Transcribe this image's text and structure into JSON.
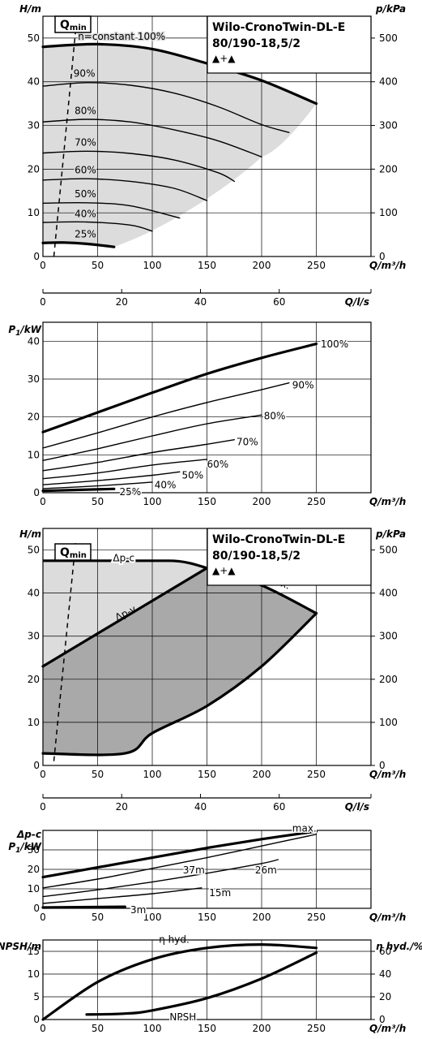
{
  "chart_data": [
    {
      "id": "c1",
      "type": "line",
      "title": "Wilo-CronoTwin-DL-E",
      "subtitle": "80/190-18,5/2",
      "title_symbols": "▲+▲",
      "qmin_label": "Qmin",
      "ylabel_left": "H/m",
      "ylabel_right": "p/kPa",
      "xlabel": "Q/m³/h",
      "xlim": [
        0,
        300
      ],
      "ylim": [
        0,
        55
      ],
      "x_ticks": [
        "0",
        "50",
        "100",
        "150",
        "200",
        "250"
      ],
      "y_ticks": [
        "0",
        "10",
        "20",
        "30",
        "40",
        "50"
      ],
      "y_right_ticks": [
        "0",
        "100",
        "200",
        "300",
        "400",
        "500"
      ],
      "grid": true,
      "series": [
        {
          "name": "n=constant 100%",
          "x": [
            0,
            50,
            100,
            150,
            200,
            250
          ],
          "y": [
            48,
            48.6,
            47.5,
            44.2,
            40.3,
            35
          ]
        },
        {
          "name": "90%",
          "x": [
            0,
            40,
            80,
            120,
            160,
            200,
            225
          ],
          "y": [
            39,
            39.8,
            39.2,
            37.4,
            34.3,
            30.2,
            28.4
          ]
        },
        {
          "name": "80%",
          "x": [
            0,
            40,
            80,
            120,
            160,
            200
          ],
          "y": [
            30.8,
            31.4,
            30.8,
            29,
            26.5,
            22.8
          ]
        },
        {
          "name": "70%",
          "x": [
            0,
            40,
            80,
            120,
            160,
            175
          ],
          "y": [
            23.7,
            24.1,
            23.6,
            22.1,
            19.2,
            17.2
          ]
        },
        {
          "name": "60%",
          "x": [
            0,
            40,
            80,
            120,
            150
          ],
          "y": [
            17.5,
            17.8,
            17.2,
            15.6,
            12.8
          ]
        },
        {
          "name": "50%",
          "x": [
            0,
            40,
            80,
            125
          ],
          "y": [
            12.2,
            12.3,
            11.6,
            8.8
          ]
        },
        {
          "name": "40%",
          "x": [
            0,
            40,
            80,
            100
          ],
          "y": [
            7.8,
            7.9,
            7.2,
            5.8
          ]
        },
        {
          "name": "25%",
          "x": [
            0,
            20,
            40,
            65
          ],
          "y": [
            3.1,
            3.2,
            2.9,
            2.2
          ]
        }
      ],
      "qmin_line": {
        "x": [
          10,
          30
        ],
        "y": [
          0,
          52
        ]
      }
    },
    {
      "id": "c2",
      "type": "line",
      "xlabel": "Q/l/s",
      "xlim": [
        0,
        83.3
      ],
      "x_ticks": [
        "0",
        "20",
        "40",
        "60"
      ],
      "axis_only": true
    },
    {
      "id": "c3",
      "type": "line",
      "ylabel": "P1/kW",
      "xlabel": "Q/m³/h",
      "xlim": [
        0,
        300
      ],
      "ylim": [
        0,
        45
      ],
      "x_ticks": [
        "0",
        "50",
        "100",
        "150",
        "200",
        "250"
      ],
      "y_ticks": [
        "0",
        "10",
        "20",
        "30",
        "40"
      ],
      "grid": true,
      "series": [
        {
          "name": "100%",
          "x": [
            0,
            50,
            100,
            150,
            200,
            250
          ],
          "y": [
            16,
            21.2,
            26.4,
            31.4,
            35.6,
            39.3
          ]
        },
        {
          "name": "90%",
          "x": [
            0,
            50,
            100,
            150,
            200,
            225
          ],
          "y": [
            11.8,
            15.8,
            20,
            23.8,
            27.2,
            29
          ]
        },
        {
          "name": "80%",
          "x": [
            0,
            50,
            100,
            150,
            200
          ],
          "y": [
            8.5,
            11.6,
            15,
            18.2,
            20.5
          ]
        },
        {
          "name": "70%",
          "x": [
            0,
            50,
            100,
            150,
            175
          ],
          "y": [
            5.8,
            8,
            10.6,
            12.8,
            14
          ]
        },
        {
          "name": "60%",
          "x": [
            0,
            50,
            100,
            150
          ],
          "y": [
            3.7,
            5.2,
            7.3,
            8.8
          ]
        },
        {
          "name": "50%",
          "x": [
            0,
            50,
            100,
            125
          ],
          "y": [
            2.1,
            3.2,
            4.6,
            5.5
          ]
        },
        {
          "name": "40%",
          "x": [
            0,
            50,
            100
          ],
          "y": [
            1.1,
            1.8,
            2.8
          ]
        },
        {
          "name": "25%",
          "x": [
            0,
            65
          ],
          "y": [
            0.5,
            1.0
          ]
        }
      ]
    },
    {
      "id": "c4",
      "type": "area",
      "title": "Wilo-CronoTwin-DL-E",
      "subtitle": "80/190-18,5/2",
      "title_symbols": "▲+▲",
      "qmin_label": "Qmin",
      "ylabel_left": "H/m",
      "ylabel_right": "p/kPa",
      "xlabel": "Q/m³/h",
      "xlim": [
        0,
        300
      ],
      "ylim": [
        0,
        55
      ],
      "x_ticks": [
        "0",
        "50",
        "100",
        "150",
        "200",
        "250"
      ],
      "y_ticks": [
        "0",
        "10",
        "20",
        "30",
        "40",
        "50"
      ],
      "y_right_ticks": [
        "0",
        "100",
        "200",
        "300",
        "400",
        "500"
      ],
      "grid": true,
      "series": [
        {
          "name": "Δp-c",
          "x": [
            0,
            115,
            150
          ],
          "y": [
            47.5,
            47.5,
            45.8
          ]
        },
        {
          "name": "Δp-v",
          "x": [
            0,
            150
          ],
          "y": [
            23,
            45.8
          ]
        },
        {
          "name": "max.",
          "x": [
            150,
            200,
            250
          ],
          "y": [
            45.8,
            41.8,
            35.3
          ]
        },
        {
          "name": "",
          "x": [
            0,
            75,
            100,
            150,
            200,
            250
          ],
          "y": [
            2.8,
            2.8,
            7.5,
            13.8,
            23,
            35.3
          ]
        }
      ],
      "qmin_line": {
        "x": [
          10,
          30
        ],
        "y": [
          1,
          52
        ]
      }
    },
    {
      "id": "c5",
      "type": "line",
      "xlabel": "Q/l/s",
      "xlim": [
        0,
        83.3
      ],
      "x_ticks": [
        "0",
        "20",
        "40",
        "60"
      ],
      "axis_only": true
    },
    {
      "id": "c6",
      "type": "line",
      "ylabel_top": "Δp-c",
      "ylabel": "P1/kW",
      "xlabel": "Q/m³/h",
      "xlim": [
        0,
        300
      ],
      "ylim": [
        0,
        40
      ],
      "x_ticks": [
        "0",
        "50",
        "100",
        "150",
        "200",
        "250"
      ],
      "y_ticks": [
        "0",
        "10",
        "20",
        "30"
      ],
      "grid": true,
      "series": [
        {
          "name": "max.",
          "x": [
            0,
            50,
            100,
            150,
            200,
            250
          ],
          "y": [
            16,
            21,
            26,
            31,
            35.5,
            39.5
          ]
        },
        {
          "name": "37m",
          "x": [
            0,
            50,
            100,
            150,
            200,
            250
          ],
          "y": [
            10.5,
            15,
            20.5,
            26,
            32,
            38
          ]
        },
        {
          "name": "26m",
          "x": [
            0,
            50,
            100,
            150,
            200,
            215
          ],
          "y": [
            6,
            9.5,
            13.5,
            18,
            23,
            25
          ]
        },
        {
          "name": "15m",
          "x": [
            0,
            50,
            100,
            145
          ],
          "y": [
            2.5,
            5,
            7.5,
            10.5
          ]
        },
        {
          "name": "3m",
          "x": [
            0,
            75
          ],
          "y": [
            0.4,
            0.8
          ]
        }
      ]
    },
    {
      "id": "c7",
      "type": "line",
      "ylabel_left": "NPSH/m",
      "ylabel_right": "η hyd./%",
      "xlabel": "Q/m³/h",
      "xlim": [
        0,
        300
      ],
      "ylim": [
        0,
        17.5
      ],
      "y2lim": [
        0,
        70
      ],
      "x_ticks": [
        "0",
        "50",
        "100",
        "150",
        "200",
        "250"
      ],
      "y_ticks": [
        "0",
        "5",
        "10",
        "15"
      ],
      "y_right_ticks": [
        "0",
        "20",
        "40",
        "60"
      ],
      "grid": true,
      "series": [
        {
          "name": "η hyd.",
          "axis": "right",
          "x": [
            0,
            50,
            100,
            150,
            200,
            250
          ],
          "y": [
            0,
            33,
            53,
            63,
            66,
            63
          ]
        },
        {
          "name": "NPSH",
          "axis": "left",
          "x": [
            40,
            75,
            100,
            150,
            200,
            250
          ],
          "y": [
            1.1,
            1.3,
            2.0,
            4.7,
            9.0,
            14.7
          ]
        }
      ]
    }
  ]
}
